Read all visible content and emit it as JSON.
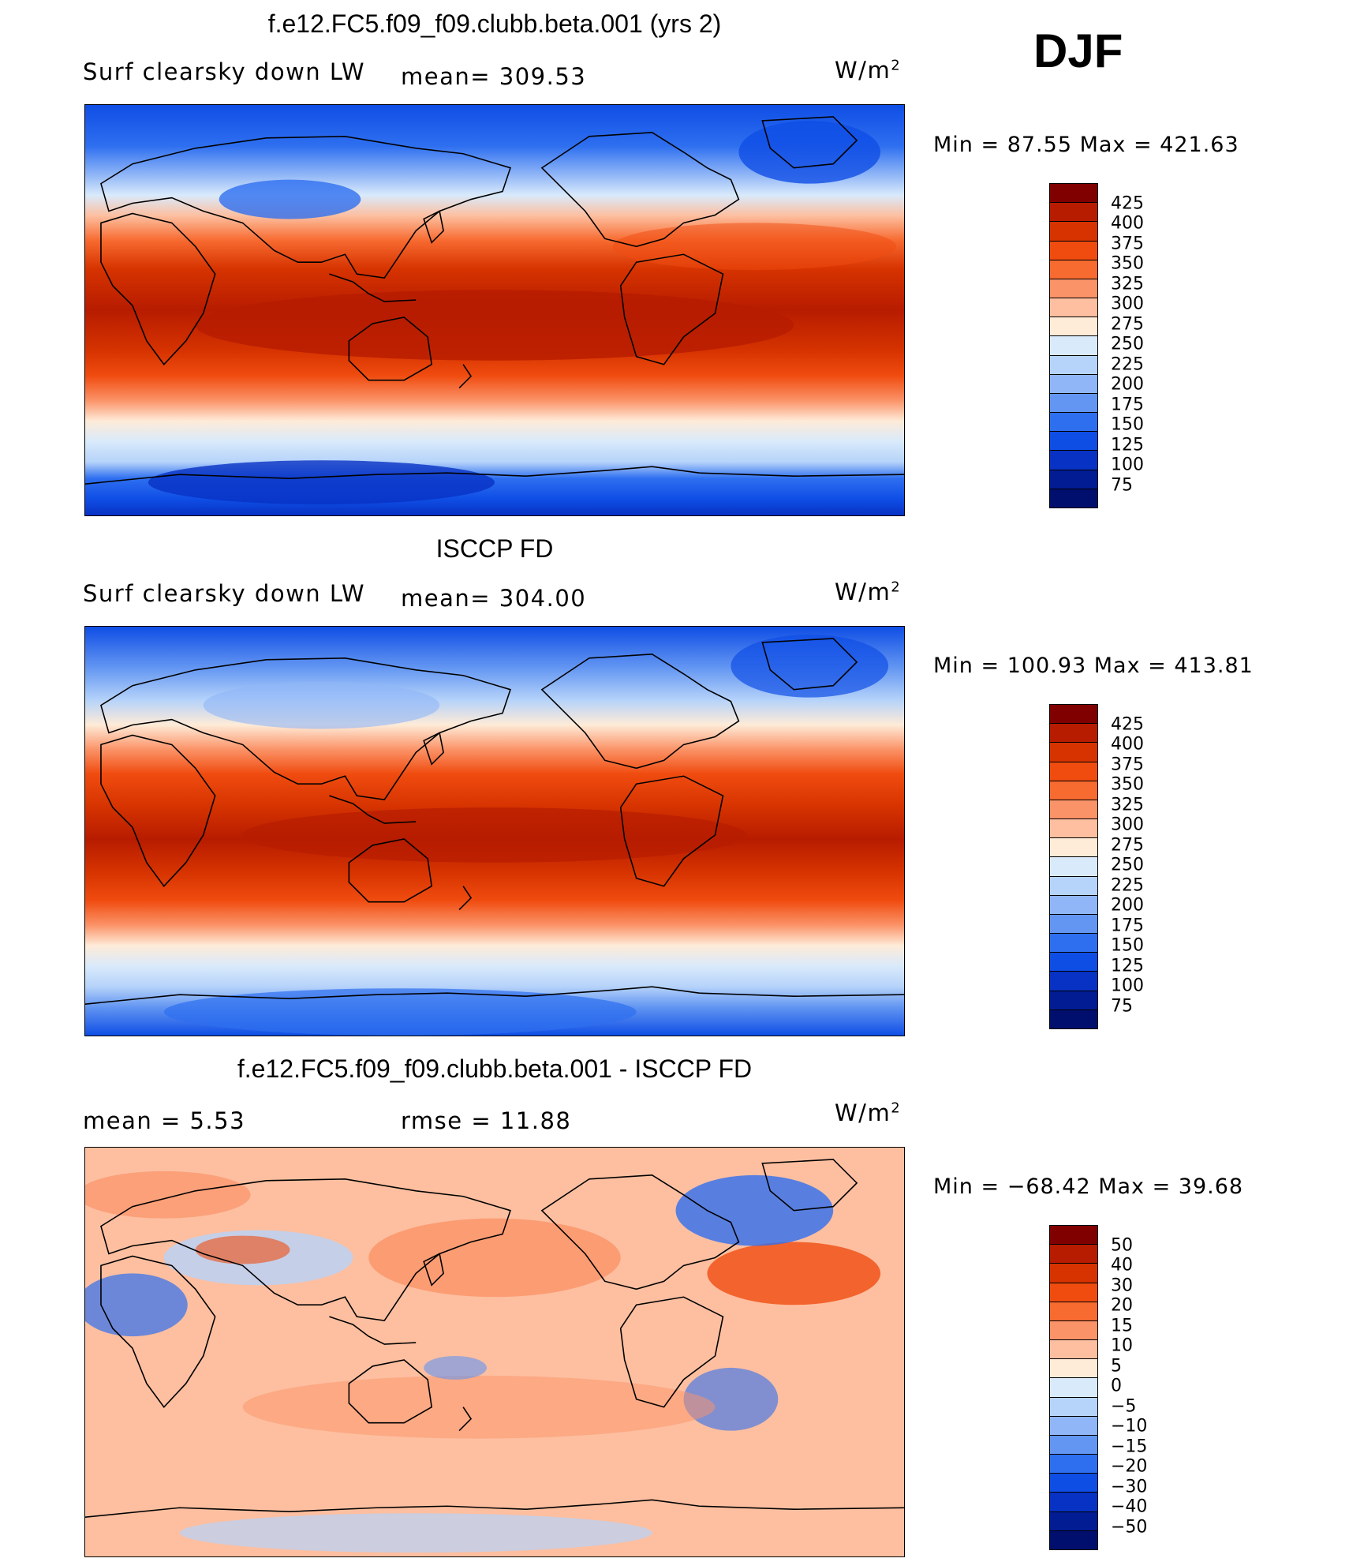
{
  "season": "DJF",
  "panels": [
    {
      "title": "f.e12.FC5.f09_f09.clubb.beta.001 (yrs 2)",
      "left_label": "Surf  clearsky  down  LW",
      "mid_label": "mean=  309.53",
      "units": "W/m",
      "units_sup": "2",
      "minmax": "Min  =    87.55  Max  =  421.63",
      "colorbar_labels": [
        "425",
        "400",
        "375",
        "350",
        "325",
        "300",
        "275",
        "250",
        "225",
        "200",
        "175",
        "150",
        "125",
        "100",
        "75"
      ],
      "colors": [
        "#800000",
        "#b71c00",
        "#d63300",
        "#f04c10",
        "#f76a30",
        "#fb9368",
        "#fdbfa0",
        "#feebd8",
        "#d9eafb",
        "#b6d3fa",
        "#90b6f7",
        "#6396f2",
        "#2e6ff0",
        "#0f4ee5",
        "#0832c4",
        "#021c94",
        "#000f6e"
      ]
    },
    {
      "title": "ISCCP FD",
      "left_label": "Surf  clearsky  down  LW",
      "mid_label": "mean=  304.00",
      "units": "W/m",
      "units_sup": "2",
      "minmax": "Min  =  100.93  Max  =  413.81",
      "colorbar_labels": [
        "425",
        "400",
        "375",
        "350",
        "325",
        "300",
        "275",
        "250",
        "225",
        "200",
        "175",
        "150",
        "125",
        "100",
        "75"
      ],
      "colors": [
        "#800000",
        "#b71c00",
        "#d63300",
        "#f04c10",
        "#f76a30",
        "#fb9368",
        "#fdbfa0",
        "#feebd8",
        "#d9eafb",
        "#b6d3fa",
        "#90b6f7",
        "#6396f2",
        "#2e6ff0",
        "#0f4ee5",
        "#0832c4",
        "#021c94",
        "#000f6e"
      ]
    },
    {
      "title": "f.e12.FC5.f09_f09.clubb.beta.001 - ISCCP FD",
      "left_label": "mean  =     5.53",
      "mid_label": "rmse  =    11.88",
      "units": "W/m",
      "units_sup": "2",
      "minmax": "Min  =  −68.42  Max  =    39.68",
      "colorbar_labels": [
        "50",
        "40",
        "30",
        "20",
        "15",
        "10",
        "5",
        "0",
        "−5",
        "−10",
        "−15",
        "−20",
        "−30",
        "−40",
        "−50"
      ],
      "colors": [
        "#800000",
        "#b71c00",
        "#d63300",
        "#f04c10",
        "#f76a30",
        "#fb9368",
        "#fdbfa0",
        "#feebd8",
        "#d9eafb",
        "#b6d3fa",
        "#90b6f7",
        "#6396f2",
        "#2e6ff0",
        "#0f4ee5",
        "#0832c4",
        "#021c94",
        "#000f6e"
      ]
    }
  ]
}
